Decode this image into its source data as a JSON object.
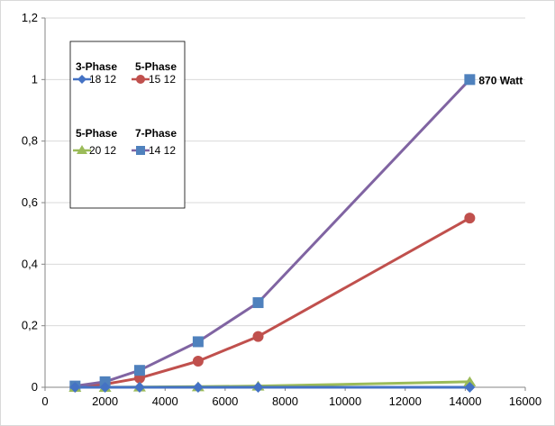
{
  "chart_data": {
    "type": "line",
    "title": "",
    "xlabel": "",
    "ylabel": "",
    "xlim": [
      0,
      16000
    ],
    "ylim": [
      0,
      1.2
    ],
    "x_ticks": [
      "0",
      "2000",
      "4000",
      "6000",
      "8000",
      "10000",
      "12000",
      "14000",
      "16000"
    ],
    "y_ticks": [
      "0",
      "0,2",
      "0,4",
      "0,6",
      "0,8",
      "1",
      "1,2"
    ],
    "grid": "horizontal",
    "legend_position": "top-left",
    "annotation": "870 Watt",
    "series": [
      {
        "group_title": "3-Phase",
        "name": "18 12",
        "marker": "diamond",
        "color": "#4472c4",
        "x": [
          1000,
          2000,
          3150,
          5100,
          7100,
          14150
        ],
        "y": [
          0.0,
          0.0,
          0.0,
          0.0,
          0.0,
          0.0
        ]
      },
      {
        "group_title": "5-Phase",
        "name": "15 12",
        "marker": "circle",
        "color": "#c0504d",
        "x": [
          1000,
          2000,
          3150,
          5100,
          7100,
          14150
        ],
        "y": [
          0.002,
          0.01,
          0.03,
          0.085,
          0.165,
          0.55
        ]
      },
      {
        "group_title": "5-Phase",
        "name": "20 12",
        "marker": "triangle",
        "color": "#9bbb59",
        "x": [
          1000,
          2000,
          3150,
          5100,
          7100,
          14150
        ],
        "y": [
          0.0,
          0.0,
          0.001,
          0.002,
          0.004,
          0.018
        ]
      },
      {
        "group_title": "7-Phase",
        "name": "14 12",
        "marker": "square",
        "color": "#4f81bd",
        "line_color": "#8064a2",
        "x": [
          1000,
          2000,
          3150,
          5100,
          7100,
          14150
        ],
        "y": [
          0.004,
          0.018,
          0.055,
          0.148,
          0.275,
          1.0
        ]
      }
    ]
  }
}
